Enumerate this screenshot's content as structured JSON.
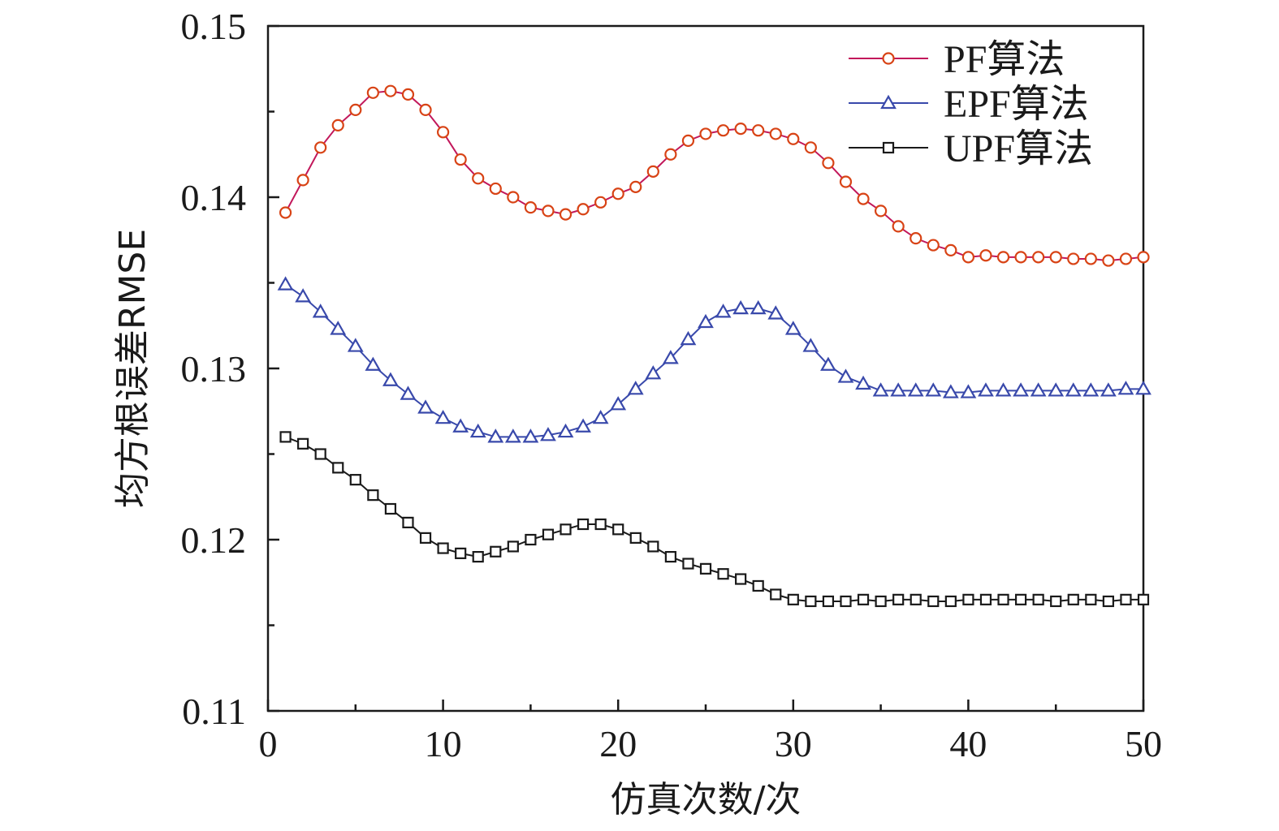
{
  "chart_data": {
    "type": "line",
    "xlabel": "仿真次数/次",
    "ylabel": "均方根误差RMSE",
    "xlim": [
      0,
      50
    ],
    "ylim": [
      0.11,
      0.15
    ],
    "x_ticks": [
      "0",
      "10",
      "20",
      "30",
      "40",
      "50"
    ],
    "y_ticks": [
      "0.11",
      "0.12",
      "0.13",
      "0.14",
      "0.15"
    ],
    "grid": false,
    "legend_position": "top-right",
    "x": [
      1,
      2,
      3,
      4,
      5,
      6,
      7,
      8,
      9,
      10,
      11,
      12,
      13,
      14,
      15,
      16,
      17,
      18,
      19,
      20,
      21,
      22,
      23,
      24,
      25,
      26,
      27,
      28,
      29,
      30,
      31,
      32,
      33,
      34,
      35,
      36,
      37,
      38,
      39,
      40,
      41,
      42,
      43,
      44,
      45,
      46,
      47,
      48,
      49,
      50
    ],
    "series": [
      {
        "name": "PF算法",
        "marker": "circle",
        "line_color": "#c2185b",
        "marker_color": "#d84315",
        "values": [
          0.1391,
          0.141,
          0.1429,
          0.1442,
          0.1451,
          0.1461,
          0.1462,
          0.146,
          0.1451,
          0.1438,
          0.1422,
          0.1411,
          0.1405,
          0.14,
          0.1394,
          0.1392,
          0.139,
          0.1393,
          0.1397,
          0.1402,
          0.1406,
          0.1415,
          0.1425,
          0.1433,
          0.1437,
          0.1439,
          0.144,
          0.1439,
          0.1437,
          0.1434,
          0.1429,
          0.142,
          0.1409,
          0.1399,
          0.1392,
          0.1383,
          0.1376,
          0.1372,
          0.1369,
          0.1365,
          0.1366,
          0.1365,
          0.1365,
          0.1365,
          0.1365,
          0.1364,
          0.1364,
          0.1363,
          0.1364,
          0.1365
        ]
      },
      {
        "name": "EPF算法",
        "marker": "triangle",
        "line_color": "#3949ab",
        "marker_color": "#3949ab",
        "values": [
          0.1349,
          0.1342,
          0.1333,
          0.1323,
          0.1313,
          0.1302,
          0.1293,
          0.1285,
          0.1277,
          0.1271,
          0.1266,
          0.1263,
          0.126,
          0.126,
          0.126,
          0.1261,
          0.1263,
          0.1266,
          0.1271,
          0.1279,
          0.1288,
          0.1297,
          0.1306,
          0.1317,
          0.1327,
          0.1333,
          0.1335,
          0.1335,
          0.1332,
          0.1323,
          0.1313,
          0.1302,
          0.1295,
          0.1291,
          0.1287,
          0.1287,
          0.1287,
          0.1287,
          0.1286,
          0.1286,
          0.1287,
          0.1287,
          0.1287,
          0.1287,
          0.1287,
          0.1287,
          0.1287,
          0.1287,
          0.1288,
          0.1288
        ]
      },
      {
        "name": "UPF算法",
        "marker": "square",
        "line_color": "#1a1a1a",
        "marker_color": "#1a1a1a",
        "values": [
          0.126,
          0.1256,
          0.125,
          0.1242,
          0.1235,
          0.1226,
          0.1218,
          0.121,
          0.1201,
          0.1195,
          0.1192,
          0.119,
          0.1193,
          0.1196,
          0.12,
          0.1203,
          0.1206,
          0.1209,
          0.1209,
          0.1206,
          0.1201,
          0.1196,
          0.119,
          0.1186,
          0.1183,
          0.118,
          0.1177,
          0.1173,
          0.1168,
          0.1165,
          0.1164,
          0.1164,
          0.1164,
          0.1165,
          0.1164,
          0.1165,
          0.1165,
          0.1164,
          0.1164,
          0.1165,
          0.1165,
          0.1165,
          0.1165,
          0.1165,
          0.1164,
          0.1165,
          0.1165,
          0.1164,
          0.1165,
          0.1165
        ]
      }
    ]
  }
}
